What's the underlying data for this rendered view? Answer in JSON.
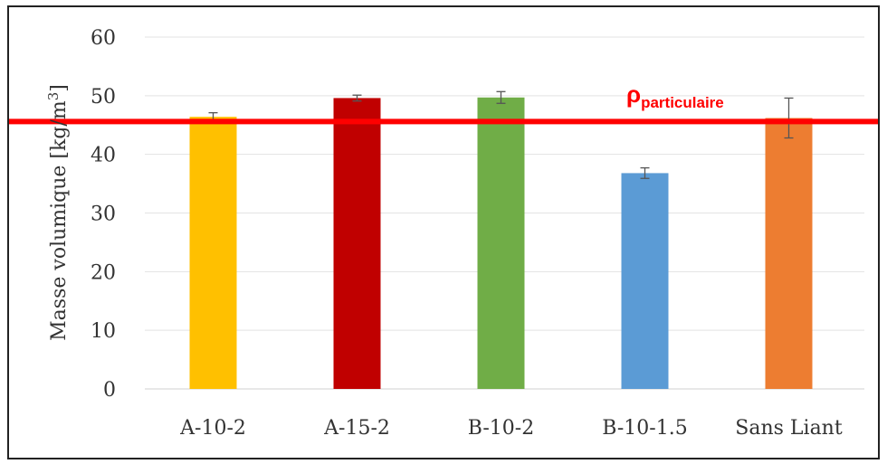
{
  "chart_data": {
    "type": "bar",
    "title": "",
    "xlabel": "",
    "ylabel": "Masse volumique [kg/m",
    "ylabel_sup": "3",
    "ylabel_end": "]",
    "ylim": [
      0,
      60
    ],
    "yticks": [
      0,
      10,
      20,
      30,
      40,
      50,
      60
    ],
    "grid": true,
    "categories": [
      "A-10-2",
      "A-15-2",
      "B-10-2",
      "B-10-1.5",
      "Sans Liant"
    ],
    "values": [
      46.4,
      49.6,
      49.7,
      36.8,
      46.2
    ],
    "errors": [
      0.7,
      0.5,
      1.0,
      0.9,
      3.4
    ],
    "colors": [
      "#ffc000",
      "#c00000",
      "#70ad47",
      "#5b9bd5",
      "#ed7d31"
    ],
    "reference_line": {
      "value": 45.6,
      "color": "#ff0000",
      "label_symbol": "ρ",
      "label_sub": "particulaire"
    }
  }
}
